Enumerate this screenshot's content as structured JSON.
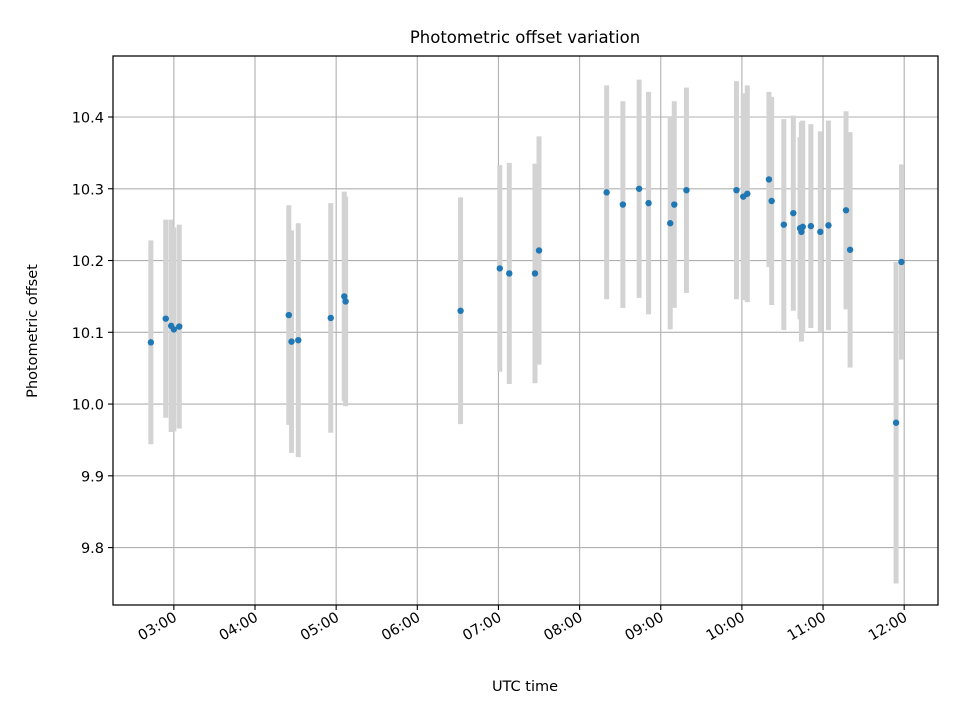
{
  "chart_data": {
    "type": "scatter",
    "title": "Photometric offset variation",
    "xlabel": "UTC time",
    "ylabel": "Photometric offset",
    "x_ticks": [
      "03:00",
      "04:00",
      "05:00",
      "06:00",
      "07:00",
      "08:00",
      "09:00",
      "10:00",
      "11:00",
      "12:00"
    ],
    "y_ticks": [
      "9.8",
      "9.9",
      "10.0",
      "10.1",
      "10.2",
      "10.3",
      "10.4"
    ],
    "xlim": [
      "02:15",
      "12:25"
    ],
    "ylim": [
      9.72,
      10.485
    ],
    "grid": true,
    "marker_color": "#1f77b4",
    "errorbar_color": "#d3d3d3",
    "points": [
      {
        "x": "02:43",
        "y": 10.086,
        "err": 0.142
      },
      {
        "x": "02:54",
        "y": 10.119,
        "err": 0.138
      },
      {
        "x": "02:58",
        "y": 10.109,
        "err": 0.148
      },
      {
        "x": "03:00",
        "y": 10.104,
        "err": 0.142
      },
      {
        "x": "03:04",
        "y": 10.108,
        "err": 0.142
      },
      {
        "x": "04:25",
        "y": 10.124,
        "err": 0.153
      },
      {
        "x": "04:27",
        "y": 10.087,
        "err": 0.155
      },
      {
        "x": "04:32",
        "y": 10.089,
        "err": 0.163
      },
      {
        "x": "04:56",
        "y": 10.12,
        "err": 0.16
      },
      {
        "x": "05:06",
        "y": 10.15,
        "err": 0.146
      },
      {
        "x": "05:07",
        "y": 10.143,
        "err": 0.146
      },
      {
        "x": "06:32",
        "y": 10.13,
        "err": 0.158
      },
      {
        "x": "07:01",
        "y": 10.189,
        "err": 0.144
      },
      {
        "x": "07:08",
        "y": 10.182,
        "err": 0.154
      },
      {
        "x": "07:27",
        "y": 10.182,
        "err": 0.153
      },
      {
        "x": "07:30",
        "y": 10.214,
        "err": 0.159
      },
      {
        "x": "08:20",
        "y": 10.295,
        "err": 0.149
      },
      {
        "x": "08:32",
        "y": 10.278,
        "err": 0.144
      },
      {
        "x": "08:44",
        "y": 10.3,
        "err": 0.152
      },
      {
        "x": "08:51",
        "y": 10.28,
        "err": 0.155
      },
      {
        "x": "09:07",
        "y": 10.252,
        "err": 0.148
      },
      {
        "x": "09:10",
        "y": 10.278,
        "err": 0.144
      },
      {
        "x": "09:19",
        "y": 10.298,
        "err": 0.143
      },
      {
        "x": "09:56",
        "y": 10.298,
        "err": 0.152
      },
      {
        "x": "10:01",
        "y": 10.289,
        "err": 0.144
      },
      {
        "x": "10:04",
        "y": 10.293,
        "err": 0.151
      },
      {
        "x": "10:20",
        "y": 10.313,
        "err": 0.122
      },
      {
        "x": "10:22",
        "y": 10.283,
        "err": 0.145
      },
      {
        "x": "10:31",
        "y": 10.25,
        "err": 0.147
      },
      {
        "x": "10:38",
        "y": 10.266,
        "err": 0.136
      },
      {
        "x": "10:43",
        "y": 10.245,
        "err": 0.127
      },
      {
        "x": "10:44",
        "y": 10.24,
        "err": 0.153
      },
      {
        "x": "10:45",
        "y": 10.247,
        "err": 0.148
      },
      {
        "x": "10:51",
        "y": 10.248,
        "err": 0.142
      },
      {
        "x": "10:58",
        "y": 10.24,
        "err": 0.14
      },
      {
        "x": "11:04",
        "y": 10.249,
        "err": 0.146
      },
      {
        "x": "11:17",
        "y": 10.27,
        "err": 0.138
      },
      {
        "x": "11:20",
        "y": 10.215,
        "err": 0.164
      },
      {
        "x": "11:54",
        "y": 9.974,
        "err": 0.224
      },
      {
        "x": "11:58",
        "y": 10.198,
        "err": 0.136
      }
    ]
  }
}
